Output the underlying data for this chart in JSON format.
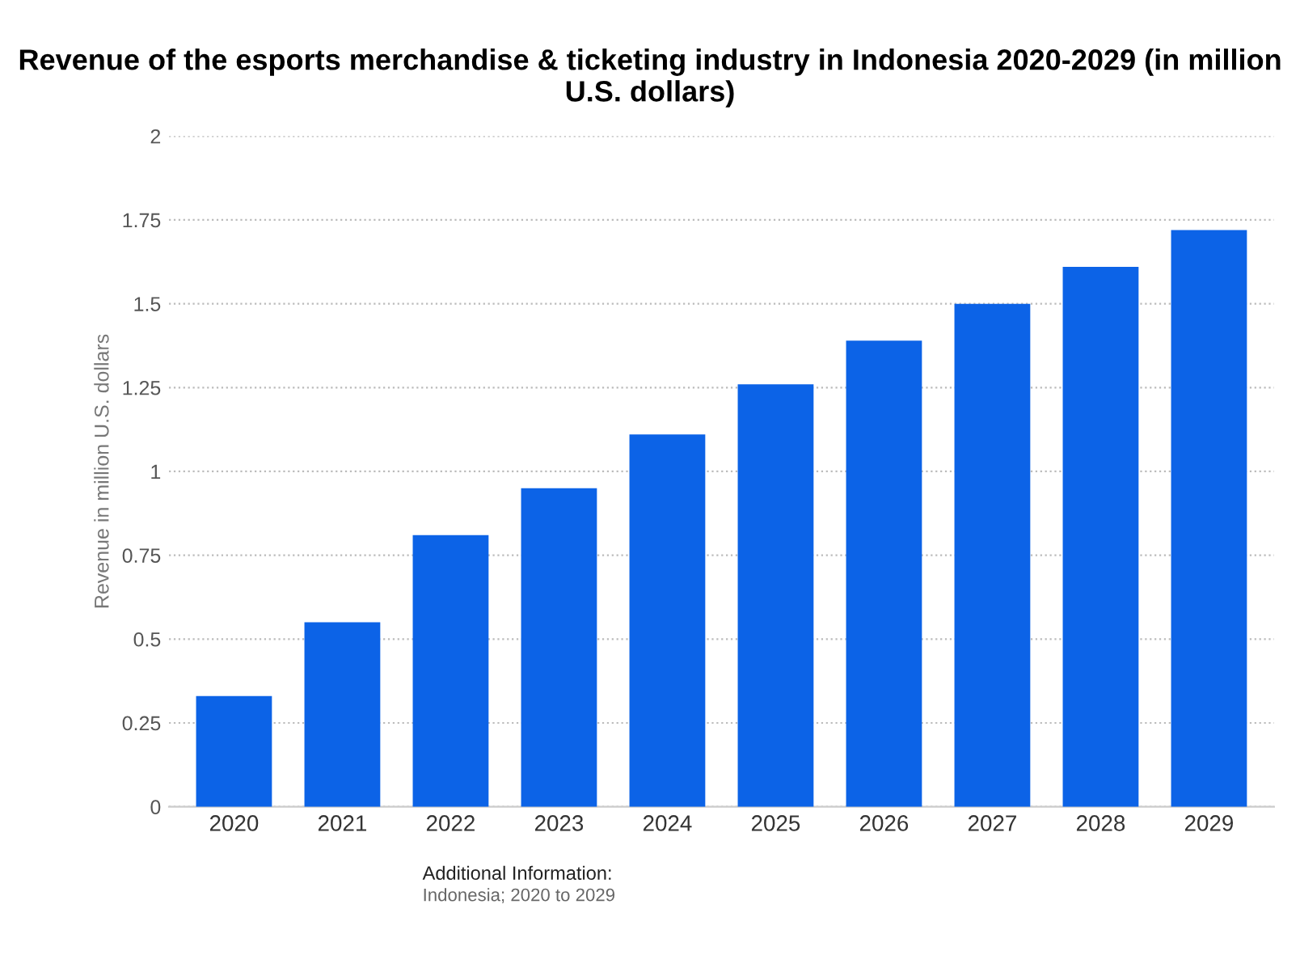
{
  "chart_data": {
    "type": "bar",
    "title": "Revenue of the esports merchandise & ticketing industry in Indonesia 2020-2029 (in million U.S. dollars)",
    "ylabel": "Revenue in million U.S. dollars",
    "categories": [
      "2020",
      "2021",
      "2022",
      "2023",
      "2024",
      "2025",
      "2026",
      "2027",
      "2028",
      "2029"
    ],
    "values": [
      0.33,
      0.55,
      0.81,
      0.95,
      1.11,
      1.26,
      1.39,
      1.5,
      1.61,
      1.72
    ],
    "color": "#0c63e7",
    "ylim": [
      0,
      2
    ],
    "yticks": [
      0,
      0.25,
      0.5,
      0.75,
      1,
      1.25,
      1.5,
      1.75,
      2
    ],
    "grid": "y",
    "annotations": [
      "Additional Information:",
      "Indonesia; 2020 to 2029"
    ]
  }
}
